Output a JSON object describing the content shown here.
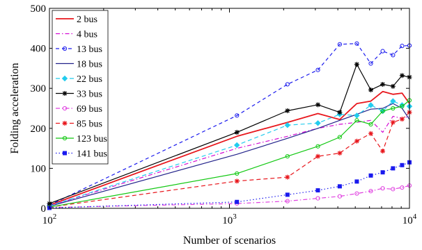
{
  "chart_data": {
    "type": "line",
    "xscale": "log",
    "xlim": [
      100,
      10000
    ],
    "ylim": [
      0,
      500
    ],
    "xticks": [
      100,
      1000,
      10000
    ],
    "yticks": [
      0,
      100,
      200,
      300,
      400,
      500
    ],
    "xlabel": "Number of scenarios",
    "ylabel": "Folding acceleration",
    "legend_position": "top-left",
    "grid": false,
    "series": [
      {
        "name": "2 bus",
        "color": "#e8161c",
        "dash": "",
        "marker": "none",
        "x": [
          100,
          1100,
          2100,
          3100,
          4100,
          5100,
          6100,
          7100,
          8100,
          9100,
          10000
        ],
        "y": [
          8,
          180,
          215,
          237,
          222,
          262,
          268,
          292,
          285,
          288,
          262
        ]
      },
      {
        "name": "4 bus",
        "color": "#d40ad4",
        "dash": "6,3,1.5,3",
        "marker": "none",
        "x": [
          100,
          1100,
          2100,
          3100,
          4100,
          5100,
          6100,
          7100,
          8100,
          9100,
          10000
        ],
        "y": [
          6,
          150,
          180,
          200,
          210,
          215,
          220,
          190,
          230,
          225,
          230
        ]
      },
      {
        "name": "13 bus",
        "color": "#1a1aee",
        "dash": "5,4",
        "marker": "circle",
        "x": [
          100,
          1100,
          2100,
          3100,
          4100,
          5100,
          6100,
          7100,
          8100,
          9100,
          10000
        ],
        "y": [
          8,
          232,
          310,
          346,
          410,
          412,
          362,
          393,
          383,
          406,
          407
        ]
      },
      {
        "name": "18 bus",
        "color": "#22228a",
        "dash": "",
        "marker": "none",
        "x": [
          100,
          1100,
          2100,
          3100,
          4100,
          5100,
          6100,
          7100,
          8100,
          9100,
          10000
        ],
        "y": [
          5,
          135,
          175,
          200,
          220,
          235,
          248,
          250,
          262,
          250,
          222
        ]
      },
      {
        "name": "22 bus",
        "color": "#22ccee",
        "dash": "6,4",
        "marker": "diamond",
        "x": [
          100,
          1100,
          2100,
          3100,
          4100,
          5100,
          6100,
          7100,
          8100,
          9100,
          10000
        ],
        "y": [
          6,
          158,
          208,
          213,
          235,
          232,
          258,
          243,
          268,
          258,
          255
        ]
      },
      {
        "name": "33 bus",
        "color": "#000000",
        "dash": "",
        "marker": "star",
        "x": [
          100,
          1100,
          2100,
          3100,
          4100,
          5100,
          6100,
          7100,
          8100,
          9100,
          10000
        ],
        "y": [
          12,
          190,
          244,
          259,
          240,
          360,
          296,
          310,
          305,
          332,
          328
        ]
      },
      {
        "name": "69 bus",
        "color": "#e040e0",
        "dash": "6,3,1.5,3",
        "marker": "circle",
        "x": [
          100,
          1100,
          2100,
          3100,
          4100,
          5100,
          6100,
          7100,
          8100,
          9100,
          10000
        ],
        "y": [
          2,
          12,
          18,
          25,
          30,
          37,
          43,
          50,
          48,
          52,
          57
        ]
      },
      {
        "name": "85 bus",
        "color": "#e8161c",
        "dash": "6,4",
        "marker": "star",
        "x": [
          100,
          1100,
          2100,
          3100,
          4100,
          5100,
          6100,
          7100,
          8100,
          9100,
          10000
        ],
        "y": [
          3,
          68,
          78,
          130,
          138,
          168,
          187,
          143,
          215,
          223,
          240
        ]
      },
      {
        "name": "123 bus",
        "color": "#11c811",
        "dash": "",
        "marker": "circle",
        "x": [
          100,
          1100,
          2100,
          3100,
          4100,
          5100,
          6100,
          7100,
          8100,
          9100,
          10000
        ],
        "y": [
          3,
          87,
          130,
          155,
          178,
          220,
          210,
          243,
          250,
          255,
          270
        ]
      },
      {
        "name": "141 bus",
        "color": "#1a1aee",
        "dash": "1.5,3",
        "marker": "square",
        "x": [
          100,
          1100,
          2100,
          3100,
          4100,
          5100,
          6100,
          7100,
          8100,
          9100,
          10000
        ],
        "y": [
          1,
          16,
          34,
          45,
          55,
          67,
          82,
          90,
          100,
          108,
          115
        ]
      }
    ]
  }
}
